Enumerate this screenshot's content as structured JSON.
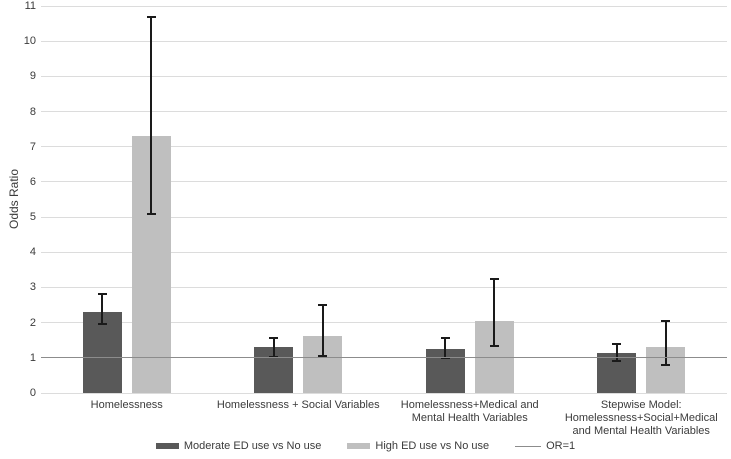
{
  "chart_data": {
    "type": "bar",
    "title": "",
    "xlabel": "",
    "ylabel": "Odds Ratio",
    "ylim": [
      0,
      11
    ],
    "ytick_step": 1,
    "yticks": [
      0,
      1,
      2,
      3,
      4,
      5,
      6,
      7,
      8,
      9,
      10,
      11
    ],
    "grid": true,
    "legend_position": "bottom",
    "categories": [
      "Homelessness",
      "Homelessness + Social Variables",
      "Homelessness+Medical and Mental Health Variables",
      "Stepwise Model: Homelessness+Social+Medical and Mental Health Variables"
    ],
    "series": [
      {
        "name": "Moderate ED use vs No use",
        "color": "#595959",
        "values": [
          2.3,
          1.3,
          1.25,
          1.13
        ],
        "ci_low": [
          1.95,
          1.03,
          1.0,
          0.9
        ],
        "ci_high": [
          2.8,
          1.57,
          1.55,
          1.4
        ]
      },
      {
        "name": "High ED use vs No use",
        "color": "#bfbfbf",
        "values": [
          7.3,
          1.63,
          2.05,
          1.3
        ],
        "ci_low": [
          5.1,
          1.05,
          1.35,
          0.8
        ],
        "ci_high": [
          10.7,
          2.5,
          3.25,
          2.05
        ]
      }
    ],
    "reference_line": {
      "label": "OR=1",
      "value": 1,
      "color": "#8c8c8c"
    },
    "style": {
      "gridline_color": "#dcdcdc",
      "error_bar_color": "#1a1a1a",
      "axis_text_color": "#3b3b3b",
      "background": "#ffffff"
    }
  }
}
